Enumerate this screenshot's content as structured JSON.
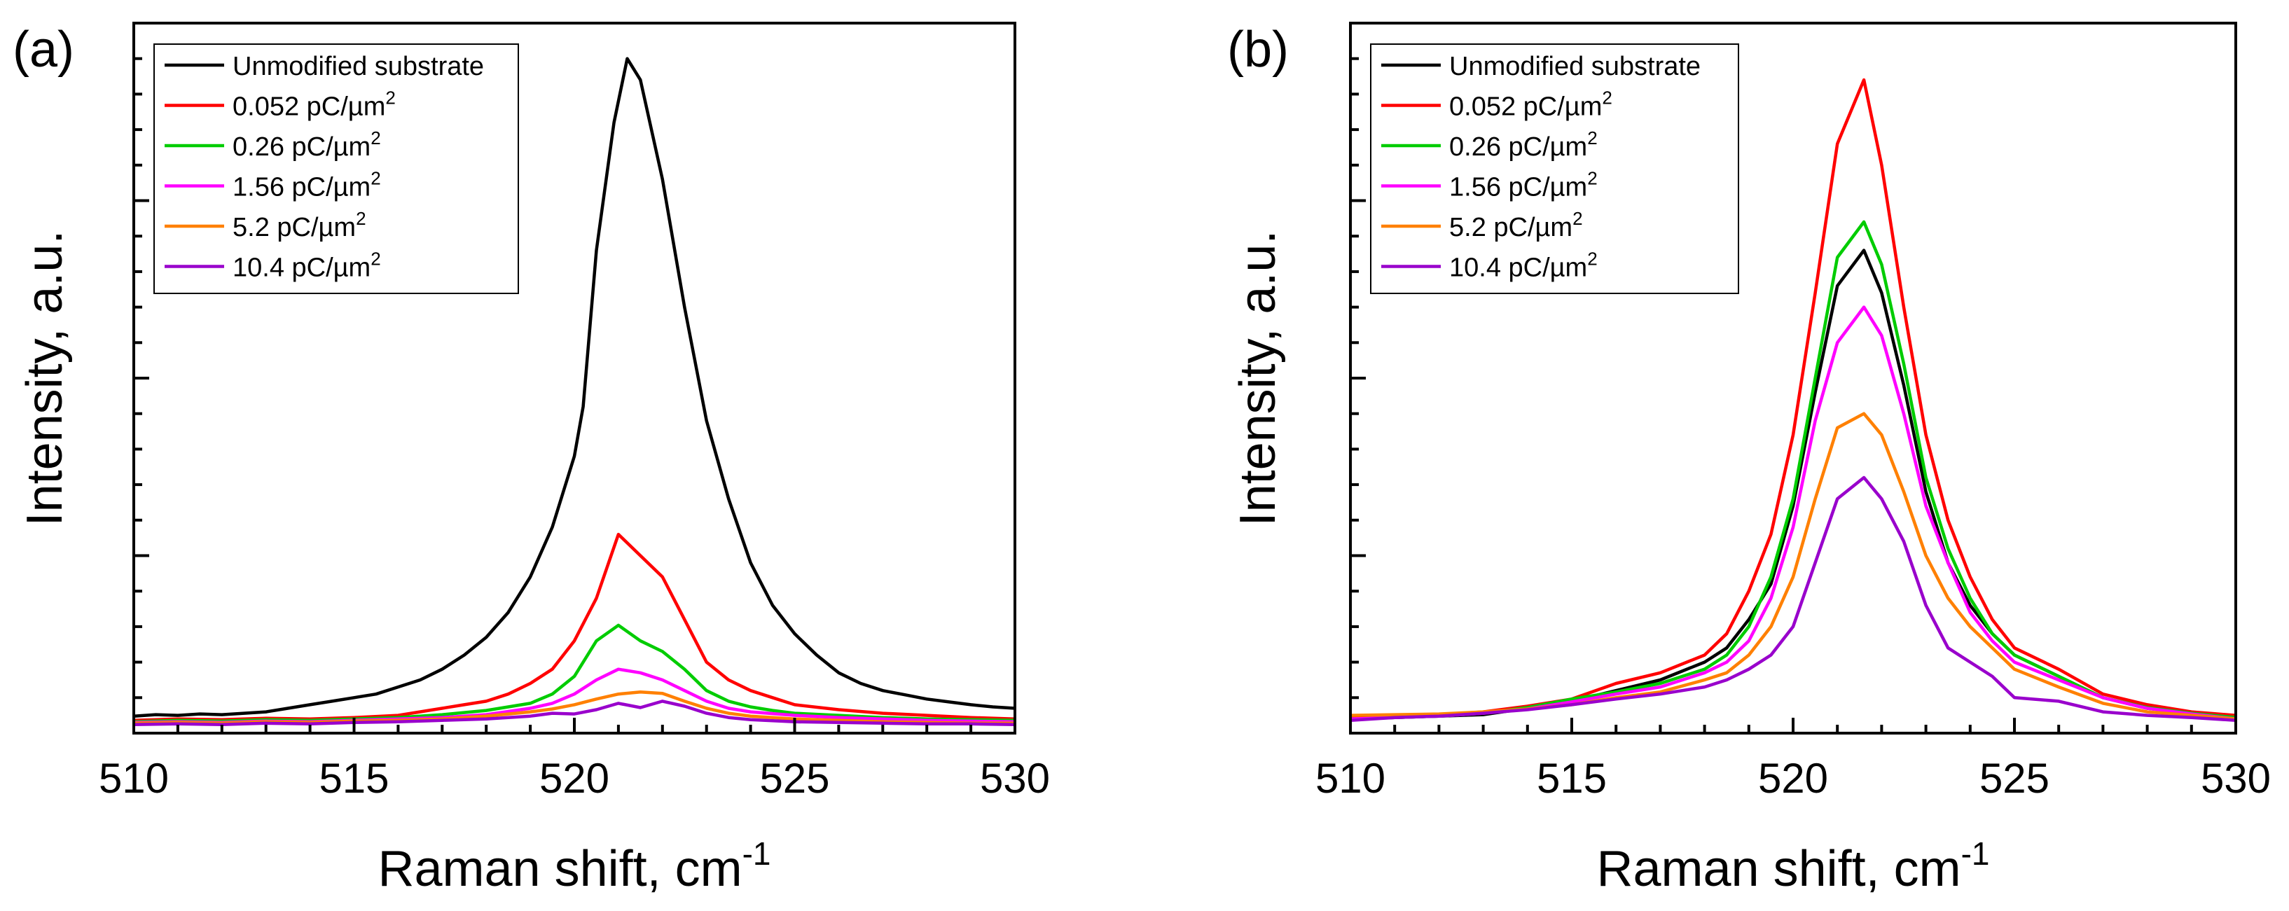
{
  "figure": {
    "panel_labels": [
      "(a)",
      "(b)"
    ]
  },
  "chart_data": [
    {
      "type": "line",
      "panel": "(a)",
      "xlabel": "Raman shift, cm",
      "xlabel_sup": "-1",
      "ylabel": "Intensity, a.u.",
      "xlim": [
        510,
        530
      ],
      "ylim": [
        0,
        1
      ],
      "xticks": [
        "510",
        "515",
        "520",
        "525",
        "530"
      ],
      "xtick_values": [
        510,
        515,
        520,
        525,
        530
      ],
      "legend_position": "top-left",
      "series": [
        {
          "name": "Unmodified substrate",
          "label_main": "Unmodified substrate",
          "label_sup": "",
          "color": "#000000",
          "x": [
            510,
            510.5,
            511,
            511.5,
            512,
            512.5,
            513,
            513.5,
            514,
            514.5,
            515,
            515.5,
            516,
            516.5,
            517,
            517.5,
            518,
            518.5,
            519,
            519.5,
            520,
            520.2,
            520.5,
            520.9,
            521.2,
            521.5,
            522,
            522.5,
            523,
            523.5,
            524,
            524.5,
            525,
            525.5,
            526,
            526.5,
            527,
            527.5,
            528,
            528.5,
            529,
            529.5,
            530
          ],
          "y": [
            0.024,
            0.026,
            0.025,
            0.027,
            0.026,
            0.028,
            0.03,
            0.035,
            0.04,
            0.045,
            0.05,
            0.055,
            0.065,
            0.075,
            0.09,
            0.11,
            0.135,
            0.17,
            0.22,
            0.29,
            0.39,
            0.46,
            0.68,
            0.86,
            0.95,
            0.92,
            0.78,
            0.6,
            0.44,
            0.33,
            0.24,
            0.18,
            0.14,
            0.11,
            0.085,
            0.07,
            0.06,
            0.054,
            0.048,
            0.044,
            0.04,
            0.037,
            0.035
          ]
        },
        {
          "name": "0.052 pC/µm2",
          "label_main": "0.052 pC/",
          "label_sup": "2",
          "color": "#ff0000",
          "x": [
            510,
            511,
            512,
            513,
            514,
            515,
            516,
            517,
            517.5,
            518,
            518.5,
            519,
            519.5,
            520,
            520.5,
            521,
            521.5,
            522,
            522.5,
            523,
            523.5,
            524,
            524.5,
            525,
            526,
            527,
            528,
            529,
            530
          ],
          "y": [
            0.018,
            0.02,
            0.019,
            0.021,
            0.02,
            0.022,
            0.025,
            0.035,
            0.04,
            0.045,
            0.055,
            0.07,
            0.09,
            0.13,
            0.19,
            0.28,
            0.25,
            0.22,
            0.16,
            0.1,
            0.075,
            0.06,
            0.05,
            0.04,
            0.033,
            0.028,
            0.025,
            0.022,
            0.02
          ]
        },
        {
          "name": "0.26 pC/µm2",
          "label_main": "0.26 pC/",
          "label_sup": "2",
          "color": "#00cc00",
          "x": [
            510,
            511,
            512,
            513,
            514,
            515,
            516,
            517,
            518,
            519,
            519.5,
            520,
            520.5,
            521,
            521.5,
            522,
            522.5,
            523,
            523.5,
            524,
            524.5,
            525,
            526,
            527,
            528,
            529,
            530
          ],
          "y": [
            0.016,
            0.018,
            0.017,
            0.019,
            0.018,
            0.02,
            0.022,
            0.026,
            0.032,
            0.042,
            0.055,
            0.08,
            0.13,
            0.152,
            0.13,
            0.115,
            0.09,
            0.06,
            0.045,
            0.037,
            0.032,
            0.028,
            0.025,
            0.022,
            0.02,
            0.019,
            0.018
          ]
        },
        {
          "name": "1.56 pC/µm2",
          "label_main": "1.56 pC/",
          "label_sup": "2",
          "color": "#ff00ff",
          "x": [
            510,
            511,
            512,
            513,
            514,
            515,
            516,
            517,
            518,
            519,
            519.5,
            520,
            520.5,
            521,
            521.5,
            522,
            522.5,
            523,
            523.5,
            524,
            525,
            526,
            527,
            528,
            529,
            530
          ],
          "y": [
            0.015,
            0.016,
            0.015,
            0.017,
            0.016,
            0.018,
            0.02,
            0.022,
            0.026,
            0.035,
            0.042,
            0.055,
            0.075,
            0.09,
            0.085,
            0.075,
            0.06,
            0.045,
            0.035,
            0.03,
            0.025,
            0.022,
            0.02,
            0.018,
            0.017,
            0.016
          ]
        },
        {
          "name": "5.2 pC/µm2",
          "label_main": "5.2 pC/",
          "label_sup": "2",
          "color": "#ff8000",
          "x": [
            510,
            511,
            512,
            513,
            514,
            515,
            516,
            517,
            518,
            519,
            519.5,
            520,
            520.5,
            521,
            521.5,
            522,
            522.5,
            523,
            523.5,
            524,
            525,
            526,
            527,
            528,
            529,
            530
          ],
          "y": [
            0.014,
            0.015,
            0.014,
            0.016,
            0.015,
            0.017,
            0.018,
            0.02,
            0.024,
            0.03,
            0.034,
            0.04,
            0.048,
            0.055,
            0.058,
            0.056,
            0.045,
            0.035,
            0.028,
            0.024,
            0.02,
            0.018,
            0.016,
            0.015,
            0.014,
            0.014
          ]
        },
        {
          "name": "10.4 pC/µm2",
          "label_main": "10.4 pC/",
          "label_sup": "2",
          "color": "#9900cc",
          "x": [
            510,
            511,
            512,
            513,
            514,
            515,
            516,
            517,
            518,
            519,
            519.5,
            520,
            520.5,
            521,
            521.5,
            522,
            522.5,
            523,
            523.5,
            524,
            525,
            526,
            527,
            528,
            529,
            530
          ],
          "y": [
            0.012,
            0.013,
            0.012,
            0.014,
            0.013,
            0.015,
            0.016,
            0.018,
            0.02,
            0.024,
            0.028,
            0.027,
            0.033,
            0.042,
            0.036,
            0.045,
            0.038,
            0.028,
            0.022,
            0.019,
            0.016,
            0.015,
            0.014,
            0.013,
            0.013,
            0.012
          ]
        }
      ]
    },
    {
      "type": "line",
      "panel": "(b)",
      "xlabel": "Raman shift, cm",
      "xlabel_sup": "-1",
      "ylabel": "Intensity, a.u.",
      "xlim": [
        510,
        530
      ],
      "ylim": [
        0,
        1
      ],
      "xticks": [
        "510",
        "515",
        "520",
        "525",
        "530"
      ],
      "xtick_values": [
        510,
        515,
        520,
        525,
        530
      ],
      "legend_position": "top-left",
      "series": [
        {
          "name": "Unmodified substrate",
          "label_main": "Unmodified substrate",
          "label_sup": "",
          "color": "#000000",
          "x": [
            510,
            511,
            512,
            513,
            514,
            515,
            516,
            517,
            518,
            518.5,
            519,
            519.5,
            520,
            520.5,
            521,
            521.6,
            522,
            522.5,
            523,
            523.5,
            524,
            524.5,
            525,
            526,
            527,
            528,
            529,
            530
          ],
          "y": [
            0.02,
            0.022,
            0.024,
            0.026,
            0.035,
            0.045,
            0.06,
            0.075,
            0.1,
            0.12,
            0.16,
            0.21,
            0.32,
            0.48,
            0.63,
            0.68,
            0.62,
            0.49,
            0.34,
            0.24,
            0.18,
            0.14,
            0.11,
            0.08,
            0.05,
            0.035,
            0.028,
            0.022
          ]
        },
        {
          "name": "0.052 pC/µm2",
          "label_main": "0.052 pC/",
          "label_sup": "2",
          "color": "#ff0000",
          "x": [
            510,
            511,
            512,
            513,
            514,
            515,
            516,
            517,
            518,
            518.5,
            519,
            519.5,
            520,
            520.5,
            521,
            521.6,
            522,
            522.5,
            523,
            523.5,
            524,
            524.5,
            525,
            526,
            527,
            528,
            529,
            530
          ],
          "y": [
            0.022,
            0.024,
            0.026,
            0.03,
            0.038,
            0.048,
            0.07,
            0.085,
            0.11,
            0.14,
            0.2,
            0.28,
            0.42,
            0.62,
            0.83,
            0.92,
            0.8,
            0.6,
            0.42,
            0.3,
            0.22,
            0.16,
            0.12,
            0.09,
            0.055,
            0.04,
            0.03,
            0.025
          ]
        },
        {
          "name": "0.26 pC/µm2",
          "label_main": "0.26 pC/",
          "label_sup": "2",
          "color": "#00cc00",
          "x": [
            510,
            511,
            512,
            513,
            514,
            515,
            516,
            517,
            518,
            518.5,
            519,
            519.5,
            520,
            520.5,
            521,
            521.6,
            522,
            522.5,
            523,
            523.5,
            524,
            524.5,
            525,
            526,
            527,
            528,
            529,
            530
          ],
          "y": [
            0.02,
            0.022,
            0.024,
            0.028,
            0.036,
            0.048,
            0.058,
            0.07,
            0.09,
            0.11,
            0.15,
            0.22,
            0.33,
            0.5,
            0.67,
            0.72,
            0.66,
            0.52,
            0.36,
            0.26,
            0.19,
            0.14,
            0.11,
            0.08,
            0.05,
            0.036,
            0.028,
            0.022
          ]
        },
        {
          "name": "1.56 pC/µm2",
          "label_main": "1.56 pC/",
          "label_sup": "2",
          "color": "#ff00ff",
          "x": [
            510,
            511,
            512,
            513,
            514,
            515,
            516,
            517,
            518,
            518.5,
            519,
            519.5,
            520,
            520.5,
            521,
            521.6,
            522,
            522.5,
            523,
            523.5,
            524,
            524.5,
            525,
            526,
            527,
            528,
            529,
            530
          ],
          "y": [
            0.02,
            0.022,
            0.024,
            0.028,
            0.034,
            0.044,
            0.055,
            0.065,
            0.085,
            0.1,
            0.13,
            0.19,
            0.29,
            0.44,
            0.55,
            0.6,
            0.56,
            0.45,
            0.32,
            0.24,
            0.17,
            0.13,
            0.1,
            0.075,
            0.05,
            0.035,
            0.027,
            0.02
          ]
        },
        {
          "name": "5.2 pC/µm2",
          "label_main": "5.2 pC/",
          "label_sup": "2",
          "color": "#ff8000",
          "x": [
            510,
            511,
            512,
            513,
            514,
            515,
            516,
            517,
            518,
            518.5,
            519,
            519.5,
            520,
            520.5,
            521,
            521.6,
            522,
            522.5,
            523,
            523.5,
            524,
            524.5,
            525,
            526,
            527,
            528,
            529,
            530
          ],
          "y": [
            0.025,
            0.026,
            0.027,
            0.03,
            0.034,
            0.04,
            0.05,
            0.058,
            0.075,
            0.085,
            0.11,
            0.15,
            0.22,
            0.33,
            0.43,
            0.45,
            0.42,
            0.34,
            0.25,
            0.19,
            0.15,
            0.12,
            0.09,
            0.065,
            0.042,
            0.03,
            0.025,
            0.02
          ]
        },
        {
          "name": "10.4 pC/µm2",
          "label_main": "10.4 pC/",
          "label_sup": "2",
          "color": "#9900cc",
          "x": [
            510,
            511,
            512,
            513,
            514,
            515,
            516,
            517,
            518,
            518.5,
            519,
            519.5,
            520,
            520.5,
            521,
            521.6,
            522,
            522.5,
            523,
            523.5,
            524,
            524.5,
            525,
            526,
            527,
            528,
            529,
            530
          ],
          "y": [
            0.018,
            0.022,
            0.024,
            0.028,
            0.033,
            0.04,
            0.048,
            0.055,
            0.065,
            0.075,
            0.09,
            0.11,
            0.15,
            0.24,
            0.33,
            0.36,
            0.33,
            0.27,
            0.18,
            0.12,
            0.1,
            0.08,
            0.05,
            0.045,
            0.03,
            0.025,
            0.022,
            0.018
          ]
        }
      ]
    }
  ]
}
